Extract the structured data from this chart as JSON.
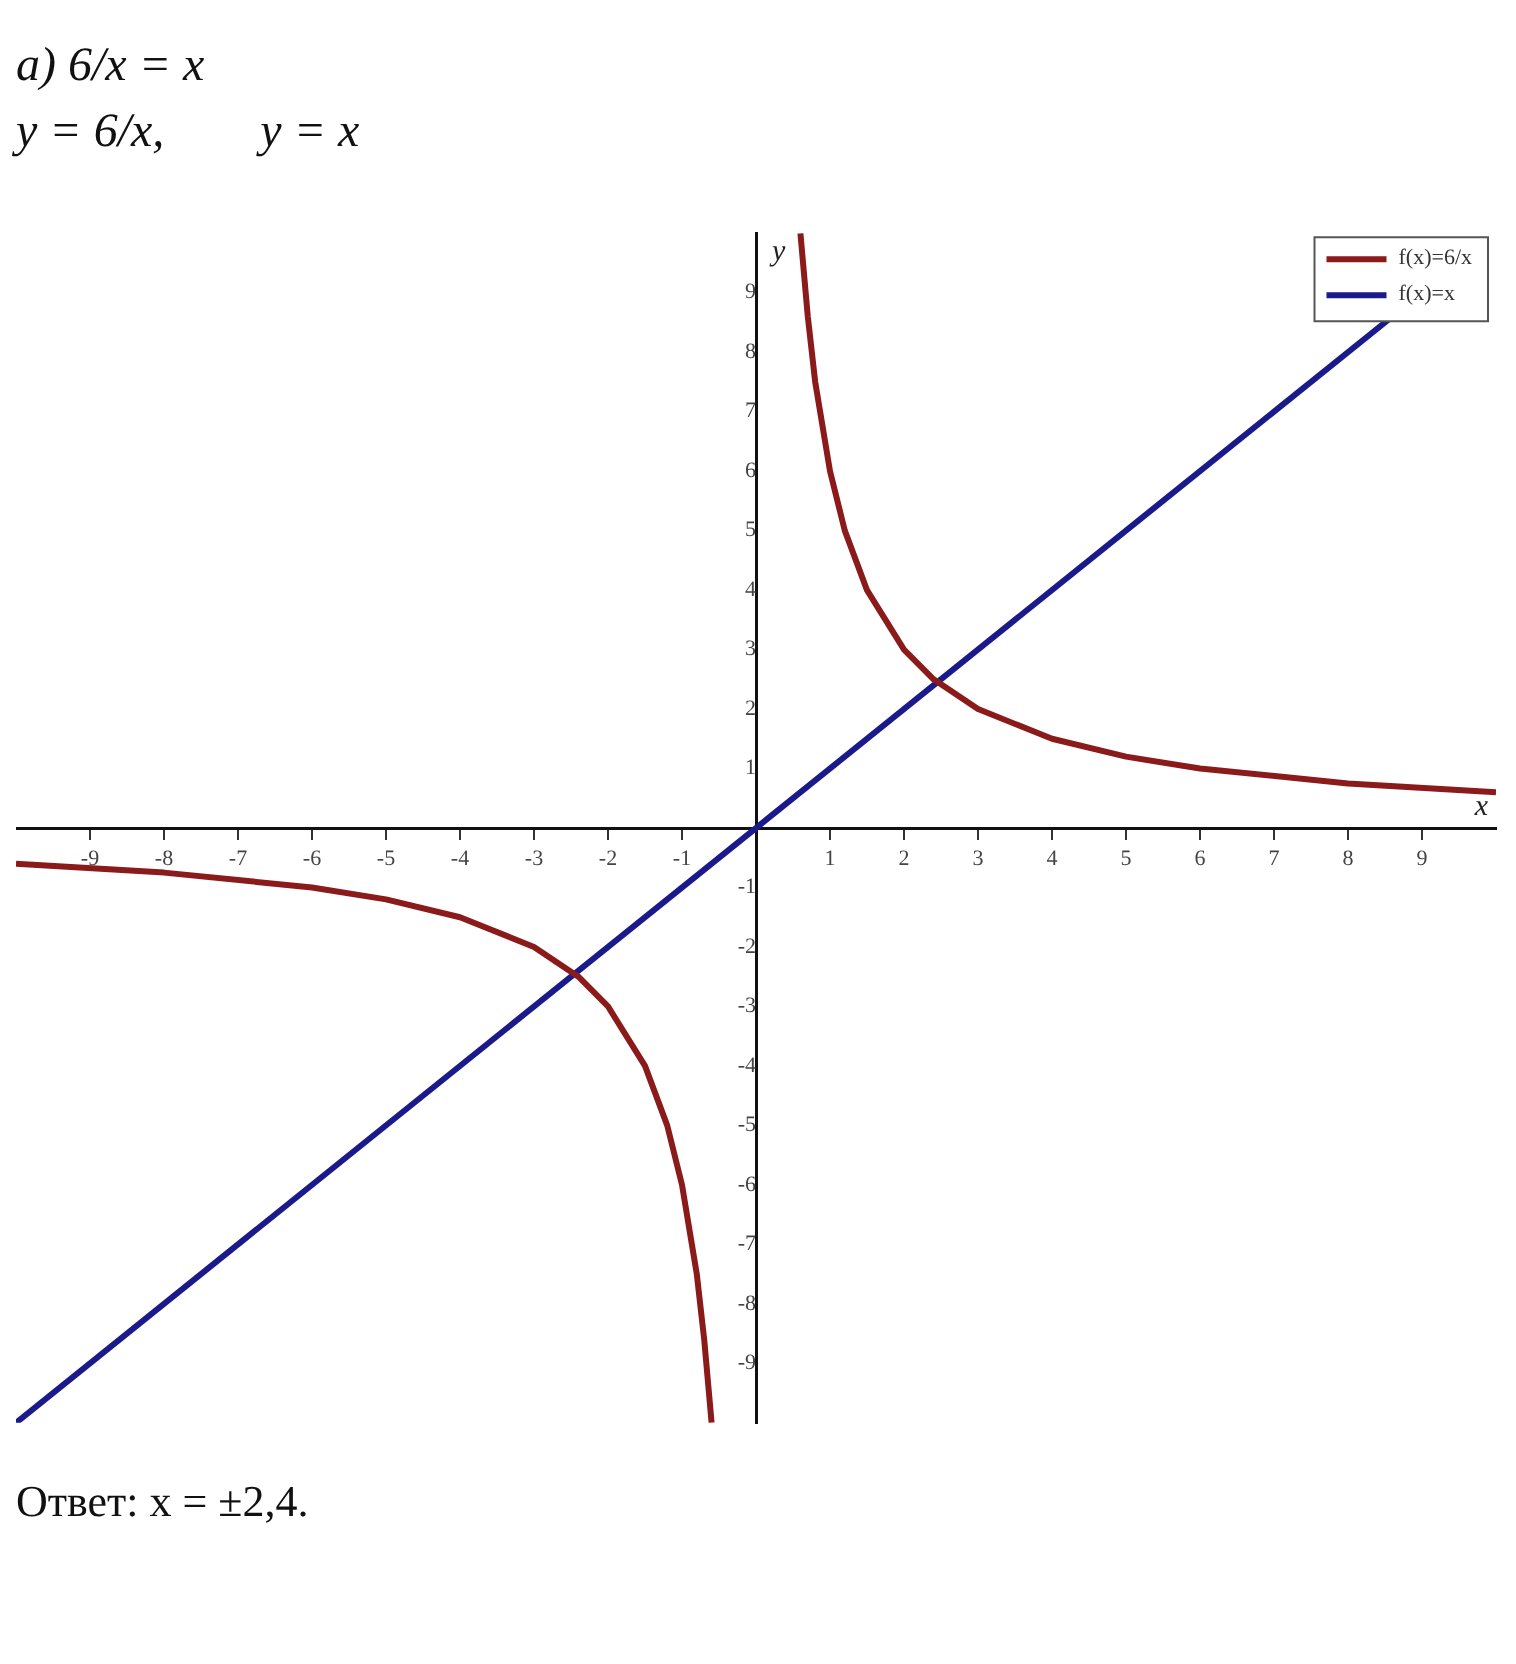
{
  "chart_data": {
    "type": "line",
    "title": "а) 6/x = x",
    "subtitle": "y = 6/x,        y = x",
    "xlabel": "x",
    "ylabel": "y",
    "annotations": [
      "Ответ: x = ±2,4."
    ],
    "xlim": [
      -10,
      10
    ],
    "ylim": [
      -10,
      10
    ],
    "xticks": [
      -9,
      -8,
      -7,
      -6,
      -5,
      -4,
      -3,
      -2,
      -1,
      1,
      2,
      3,
      4,
      5,
      6,
      7,
      8,
      9
    ],
    "yticks": [
      -9,
      -8,
      -7,
      -6,
      -5,
      -4,
      -3,
      -2,
      -1,
      1,
      2,
      3,
      4,
      5,
      6,
      7,
      8,
      9
    ],
    "grid": false,
    "legend": "top right",
    "marker": "none",
    "line_style": "solid",
    "series": [
      {
        "name": "f(x)=6/x",
        "color": "#8b1a1a",
        "x": [
          -10,
          -8,
          -6,
          -5,
          -4,
          -3,
          -2.4,
          -2,
          -1.5,
          -1.2,
          -1,
          -0.8,
          -0.7,
          -0.6,
          0,
          0.6,
          0.7,
          0.8,
          1,
          1.2,
          1.5,
          2,
          2.4,
          3,
          4,
          5,
          6,
          8,
          10
        ],
        "values": [
          -0.6,
          -0.75,
          -1,
          -1.2,
          -1.5,
          -2,
          -2.5,
          -3,
          -4,
          -5,
          -6,
          -7.5,
          -8.6,
          -10,
          null,
          10,
          8.6,
          7.5,
          6,
          5,
          4,
          3,
          2.5,
          2,
          1.5,
          1.2,
          1,
          0.75,
          0.6
        ]
      },
      {
        "name": "f(x)=x",
        "color": "#1a1a8b",
        "x": [
          -10,
          8.6
        ],
        "values": [
          -10,
          8.6
        ]
      }
    ]
  }
}
